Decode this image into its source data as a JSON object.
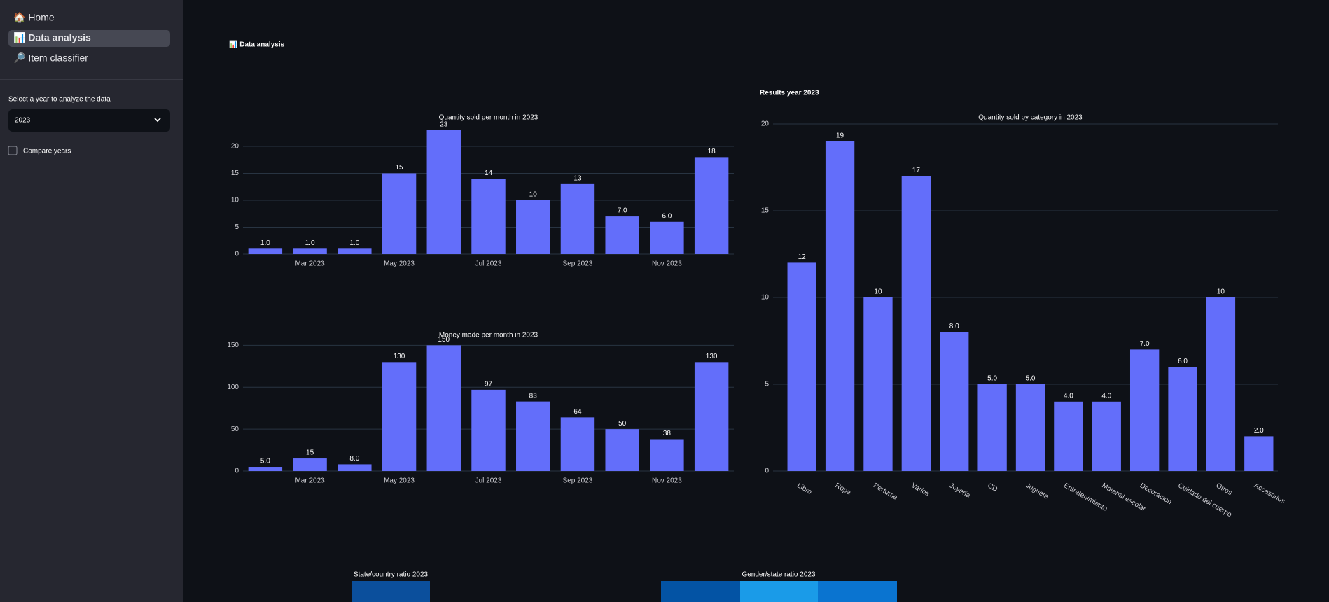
{
  "sidebar": {
    "nav": [
      "🏠 Home",
      "📊 Data analysis",
      "🔎 Item classifier"
    ],
    "select_label": "Select a year to analyze the data",
    "select_value": "2023",
    "checkbox_label": "Compare years"
  },
  "header": {
    "title": "📊 Data analysis",
    "subtitle": "Results year 2023"
  },
  "chart_data": [
    {
      "type": "bar",
      "title": "Quantity sold per month in 2023",
      "x": [
        "2023-02",
        "2023-03",
        "2023-04",
        "2023-05",
        "2023-06",
        "2023-07",
        "2023-08",
        "2023-09",
        "2023-10",
        "2023-11",
        "2023-12"
      ],
      "values": [
        1,
        1,
        1,
        15,
        23,
        14,
        10,
        13,
        7,
        6,
        18
      ],
      "value_labels": [
        "1.0",
        "1.0",
        "1.0",
        "15",
        "23",
        "14",
        "10",
        "13",
        "7.0",
        "6.0",
        "18"
      ],
      "xticks": [
        {
          "value": "2023-03",
          "label": "Mar 2023"
        },
        {
          "value": "2023-05",
          "label": "May 2023"
        },
        {
          "value": "2023-07",
          "label": "Jul 2023"
        },
        {
          "value": "2023-09",
          "label": "Sep 2023"
        },
        {
          "value": "2023-11",
          "label": "Nov 2023"
        }
      ],
      "ylim": [
        0,
        23.5
      ],
      "yticks": [
        0,
        5,
        10,
        15,
        20
      ],
      "color": "#636efa",
      "grid": true
    },
    {
      "type": "bar",
      "title": "Money made per month in 2023",
      "x": [
        "2023-02",
        "2023-03",
        "2023-04",
        "2023-05",
        "2023-06",
        "2023-07",
        "2023-08",
        "2023-09",
        "2023-10",
        "2023-11",
        "2023-12"
      ],
      "values": [
        5,
        15,
        8,
        130,
        150,
        97,
        83,
        64,
        50,
        38,
        130
      ],
      "value_labels": [
        "5.0",
        "15",
        "8.0",
        "130",
        "150",
        "97",
        "83",
        "64",
        "50",
        "38",
        "130"
      ],
      "xticks": [
        {
          "value": "2023-03",
          "label": "Mar 2023"
        },
        {
          "value": "2023-05",
          "label": "May 2023"
        },
        {
          "value": "2023-07",
          "label": "Jul 2023"
        },
        {
          "value": "2023-09",
          "label": "Sep 2023"
        },
        {
          "value": "2023-11",
          "label": "Nov 2023"
        }
      ],
      "ylim": [
        0,
        152
      ],
      "yticks": [
        0,
        50,
        100,
        150
      ],
      "color": "#636efa",
      "grid": true
    },
    {
      "type": "bar",
      "title": "Quantity sold by category in 2023",
      "categories": [
        "Libro",
        "Ropa",
        "Perfume",
        "Varios",
        "Joyeria",
        "CD",
        "Juguete",
        "Entretenimiento",
        "Material escolar",
        "Decoracion",
        "Cuidado del cuerpo",
        "Otros",
        "Accesorios"
      ],
      "values": [
        12,
        19,
        10,
        17,
        8,
        5,
        5,
        4,
        4,
        7,
        6,
        10,
        2
      ],
      "value_labels": [
        "12",
        "19",
        "10",
        "17",
        "8.0",
        "5.0",
        "5.0",
        "4.0",
        "4.0",
        "7.0",
        "6.0",
        "10",
        "2.0"
      ],
      "ylim": [
        0,
        20
      ],
      "yticks": [
        0,
        5,
        10,
        15,
        20
      ],
      "color": "#636efa",
      "grid": true
    }
  ],
  "heatmaps": [
    {
      "title": "State/country ratio 2023"
    },
    {
      "title": "Gender/state ratio 2023"
    }
  ]
}
